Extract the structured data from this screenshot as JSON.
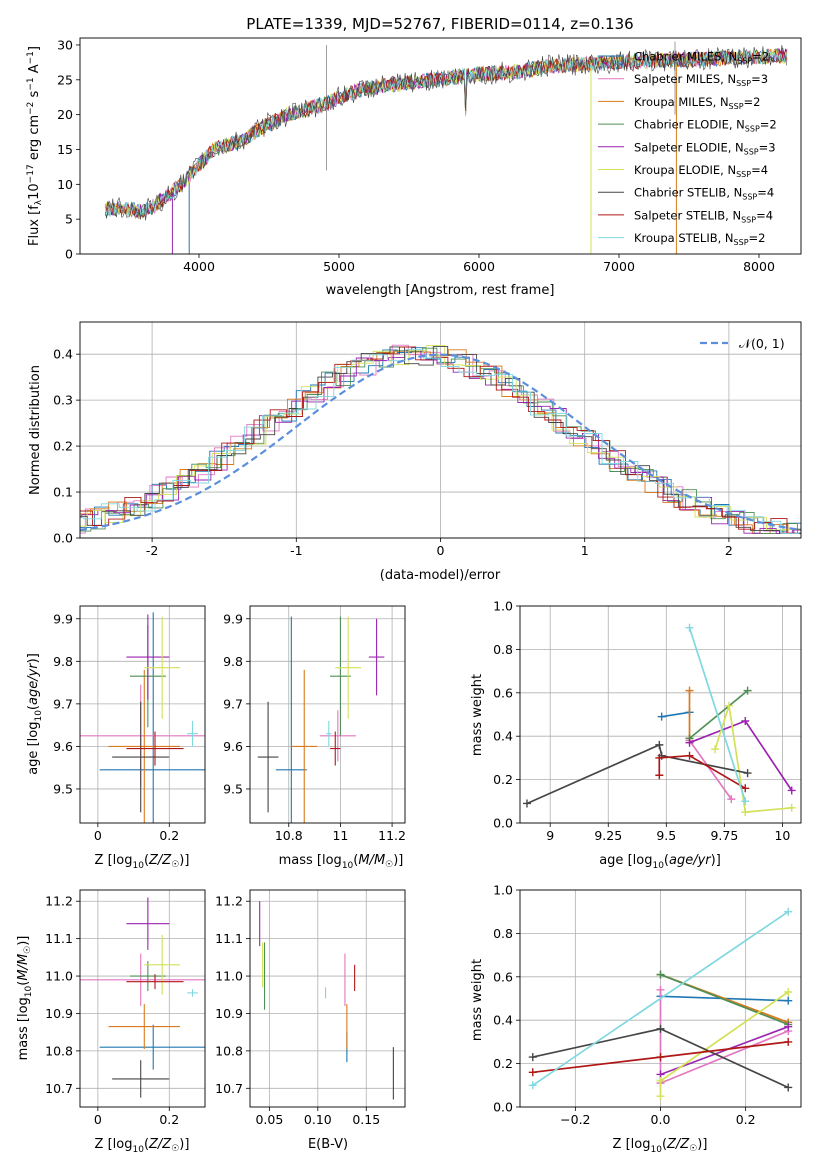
{
  "chart_data": [
    {
      "id": "spectrum",
      "type": "line",
      "title": "PLATE=1339, MJD=52767, FIBERID=0114, z=0.136",
      "xlabel": "wavelength [Angstrom, rest frame]",
      "ylabel_parts": [
        "Flux [f",
        "λ",
        "10",
        "−17",
        " erg cm",
        "−2",
        " s",
        "−1",
        " A",
        "−1",
        "]"
      ],
      "xlim": [
        3150,
        8300
      ],
      "ylim": [
        0,
        31
      ],
      "xticks": [
        4000,
        5000,
        6000,
        7000,
        8000
      ],
      "yticks": [
        0,
        5,
        10,
        15,
        20,
        25,
        30
      ],
      "legend_position": "upper right",
      "legend": [
        {
          "label": "Chabrier MILES, N",
          "sub": "SSP",
          "tail": "=2",
          "color": "#1f77b4"
        },
        {
          "label": "Salpeter MILES, N",
          "sub": "SSP",
          "tail": "=3",
          "color": "#e377c2"
        },
        {
          "label": "Kroupa MILES, N",
          "sub": "SSP",
          "tail": "=2",
          "color": "#d97a1c"
        },
        {
          "label": "Chabrier ELODIE, N",
          "sub": "SSP",
          "tail": "=2",
          "color": "#4f8f55"
        },
        {
          "label": "Salpeter ELODIE, N",
          "sub": "SSP",
          "tail": "=3",
          "color": "#9b24b0"
        },
        {
          "label": "Kroupa ELODIE, N",
          "sub": "SSP",
          "tail": "=4",
          "color": "#d4e157"
        },
        {
          "label": "Chabrier STELIB, N",
          "sub": "SSP",
          "tail": "=4",
          "color": "#454545"
        },
        {
          "label": "Salpeter STELIB, N",
          "sub": "SSP",
          "tail": "=4",
          "color": "#b01818"
        },
        {
          "label": "Kroupa STELIB, N",
          "sub": "SSP",
          "tail": "=2",
          "color": "#80d8e0"
        }
      ],
      "continuum": [
        [
          3320,
          6.5
        ],
        [
          3500,
          6.5
        ],
        [
          3600,
          6.0
        ],
        [
          3700,
          7.2
        ],
        [
          3800,
          8.8
        ],
        [
          3900,
          10.5
        ],
        [
          4000,
          12.8
        ],
        [
          4100,
          15.0
        ],
        [
          4200,
          15.6
        ],
        [
          4300,
          16.3
        ],
        [
          4400,
          17.5
        ],
        [
          4500,
          18.8
        ],
        [
          4700,
          20.4
        ],
        [
          4900,
          21.5
        ],
        [
          5000,
          22.5
        ],
        [
          5200,
          23.8
        ],
        [
          5500,
          24.6
        ],
        [
          5800,
          25.3
        ],
        [
          6000,
          25.8
        ],
        [
          6300,
          26.2
        ],
        [
          6500,
          27.0
        ],
        [
          6700,
          27.2
        ],
        [
          7000,
          27.6
        ],
        [
          7500,
          27.9
        ],
        [
          8000,
          28.3
        ],
        [
          8200,
          28.5
        ]
      ],
      "drops": [
        {
          "color": "#1f77b4",
          "x": 3930
        },
        {
          "color": "#d4e157",
          "x": 6800
        },
        {
          "color": "#d97a1c",
          "x": 7410
        },
        {
          "color": "#9b24b0",
          "x": 3810
        }
      ]
    },
    {
      "id": "residuals",
      "type": "histogram",
      "xlabel": "(data-model)/error",
      "ylabel": "Normed distribution",
      "xlim": [
        -2.5,
        2.5
      ],
      "ylim": [
        0,
        0.47
      ],
      "xticks": [
        -2,
        -1,
        0,
        1,
        2
      ],
      "yticks": [
        0.0,
        0.1,
        0.2,
        0.3,
        0.4
      ],
      "grid": true,
      "legend": [
        {
          "label": "𝒩(0, 1)",
          "color": "#5b8fde",
          "style": "dashed"
        }
      ],
      "legend_position": "upper right",
      "reference_curve": "normal(0,1)"
    },
    {
      "id": "age_vs_Z",
      "type": "scatter",
      "xlabel": "Z [log10(Z/Z☉)]",
      "ylabel": "age [log10(age/yr)]",
      "xlim": [
        -0.05,
        0.3
      ],
      "ylim": [
        9.42,
        9.93
      ],
      "xticks": [
        0.0,
        0.2
      ],
      "yticks": [
        9.5,
        9.6,
        9.7,
        9.8,
        9.9
      ],
      "grid": true,
      "points": [
        {
          "color": "#1f77b4",
          "x": 0.155,
          "y": 9.545,
          "xerr": 0.15,
          "yerr": 0.37
        },
        {
          "color": "#e377c2",
          "x": 0.12,
          "y": 9.625,
          "xerr": 0.18,
          "yerr": 0.12
        },
        {
          "color": "#d97a1c",
          "x": 0.13,
          "y": 9.6,
          "xerr": 0.1,
          "yerr": 0.18
        },
        {
          "color": "#4f8f55",
          "x": 0.14,
          "y": 9.765,
          "xerr": 0.05,
          "yerr": 0.12
        },
        {
          "color": "#9b24b0",
          "x": 0.14,
          "y": 9.81,
          "xerr": 0.06,
          "yerr": 0.1
        },
        {
          "color": "#d4e157",
          "x": 0.18,
          "y": 9.785,
          "xerr": 0.05,
          "yerr": 0.12
        },
        {
          "color": "#454545",
          "x": 0.12,
          "y": 9.575,
          "xerr": 0.08,
          "yerr": 0.13
        },
        {
          "color": "#b01818",
          "x": 0.16,
          "y": 9.595,
          "xerr": 0.08,
          "yerr": 0.04
        },
        {
          "color": "#80d8e0",
          "x": 0.265,
          "y": 9.63,
          "xerr": 0.015,
          "yerr": 0.03
        }
      ]
    },
    {
      "id": "age_vs_mass",
      "type": "scatter",
      "xlabel": "mass [log10(M/M☉)]",
      "ylabel": "",
      "xlim": [
        10.65,
        11.25
      ],
      "ylim": [
        9.42,
        9.93
      ],
      "xticks": [
        10.8,
        11.0,
        11.2
      ],
      "yticks": [
        9.5,
        9.6,
        9.7,
        9.8,
        9.9
      ],
      "grid": true,
      "points": [
        {
          "color": "#1f77b4",
          "x": 10.81,
          "y": 9.545,
          "xerr": 0.06,
          "yerr": 0.36
        },
        {
          "color": "#e377c2",
          "x": 10.99,
          "y": 9.625,
          "xerr": 0.07,
          "yerr": 0.06
        },
        {
          "color": "#d97a1c",
          "x": 10.86,
          "y": 9.6,
          "xerr": 0.05,
          "yerr": 0.18
        },
        {
          "color": "#4f8f55",
          "x": 11.0,
          "y": 9.765,
          "xerr": 0.04,
          "yerr": 0.14
        },
        {
          "color": "#9b24b0",
          "x": 11.14,
          "y": 9.81,
          "xerr": 0.03,
          "yerr": 0.09
        },
        {
          "color": "#d4e157",
          "x": 11.03,
          "y": 9.785,
          "xerr": 0.05,
          "yerr": 0.12
        },
        {
          "color": "#454545",
          "x": 10.72,
          "y": 9.575,
          "xerr": 0.04,
          "yerr": 0.13
        },
        {
          "color": "#b01818",
          "x": 10.98,
          "y": 9.595,
          "xerr": 0.02,
          "yerr": 0.04
        },
        {
          "color": "#80d8e0",
          "x": 10.955,
          "y": 9.63,
          "xerr": 0.01,
          "yerr": 0.03
        }
      ]
    },
    {
      "id": "weight_vs_age",
      "type": "line",
      "xlabel": "age [log10(age/yr)]",
      "ylabel": "mass weight",
      "xlim": [
        8.87,
        10.08
      ],
      "ylim": [
        0,
        1
      ],
      "xticks": [
        9.0,
        9.25,
        9.5,
        9.75,
        10.0
      ],
      "yticks": [
        0.0,
        0.2,
        0.4,
        0.6,
        0.8,
        1.0
      ],
      "grid": true,
      "series": [
        {
          "color": "#1f77b4",
          "points": [
            [
              9.48,
              0.49
            ],
            [
              9.6,
              0.51
            ]
          ]
        },
        {
          "color": "#e377c2",
          "points": [
            [
              9.6,
              0.38
            ],
            [
              9.78,
              0.11
            ]
          ]
        },
        {
          "color": "#d97a1c",
          "points": [
            [
              9.6,
              0.61
            ],
            [
              9.6,
              0.39
            ]
          ]
        },
        {
          "color": "#4f8f55",
          "points": [
            [
              9.6,
              0.39
            ],
            [
              9.85,
              0.61
            ]
          ]
        },
        {
          "color": "#9b24b0",
          "points": [
            [
              9.6,
              0.37
            ],
            [
              9.84,
              0.47
            ],
            [
              10.04,
              0.15
            ]
          ]
        },
        {
          "color": "#d4e157",
          "points": [
            [
              9.71,
              0.34
            ],
            [
              9.77,
              0.54
            ],
            [
              9.84,
              0.05
            ],
            [
              10.04,
              0.07
            ]
          ]
        },
        {
          "color": "#454545",
          "points": [
            [
              8.9,
              0.09
            ],
            [
              9.47,
              0.36
            ],
            [
              9.48,
              0.31
            ],
            [
              9.85,
              0.23
            ]
          ]
        },
        {
          "color": "#b01818",
          "points": [
            [
              9.47,
              0.22
            ],
            [
              9.47,
              0.3
            ],
            [
              9.6,
              0.31
            ],
            [
              9.84,
              0.16
            ]
          ]
        },
        {
          "color": "#80d8e0",
          "points": [
            [
              9.6,
              0.9
            ],
            [
              9.84,
              0.1
            ]
          ]
        }
      ]
    },
    {
      "id": "mass_vs_Z",
      "type": "scatter",
      "xlabel": "Z [log10(Z/Z☉)]",
      "ylabel": "mass [log10(M/M☉)]",
      "xlim": [
        -0.05,
        0.3
      ],
      "ylim": [
        10.65,
        11.23
      ],
      "xticks": [
        0.0,
        0.2
      ],
      "yticks": [
        10.7,
        10.8,
        10.9,
        11.0,
        11.1,
        11.2
      ],
      "grid": true,
      "points": [
        {
          "color": "#1f77b4",
          "x": 0.155,
          "y": 10.81,
          "xerr": 0.15,
          "yerr": 0.06
        },
        {
          "color": "#e377c2",
          "x": 0.12,
          "y": 10.99,
          "xerr": 0.18,
          "yerr": 0.07
        },
        {
          "color": "#d97a1c",
          "x": 0.13,
          "y": 10.865,
          "xerr": 0.1,
          "yerr": 0.06
        },
        {
          "color": "#4f8f55",
          "x": 0.14,
          "y": 11.0,
          "xerr": 0.05,
          "yerr": 0.04
        },
        {
          "color": "#9b24b0",
          "x": 0.14,
          "y": 11.14,
          "xerr": 0.06,
          "yerr": 0.07
        },
        {
          "color": "#d4e157",
          "x": 0.18,
          "y": 11.03,
          "xerr": 0.05,
          "yerr": 0.08
        },
        {
          "color": "#454545",
          "x": 0.12,
          "y": 10.725,
          "xerr": 0.08,
          "yerr": 0.05
        },
        {
          "color": "#b01818",
          "x": 0.16,
          "y": 10.985,
          "xerr": 0.08,
          "yerr": 0.02
        },
        {
          "color": "#80d8e0",
          "x": 0.265,
          "y": 10.955,
          "xerr": 0.015,
          "yerr": 0.01
        }
      ]
    },
    {
      "id": "mass_vs_ebv",
      "type": "scatter",
      "xlabel": "E(B-V)",
      "ylabel": "",
      "xlim": [
        0.03,
        0.19
      ],
      "ylim": [
        10.65,
        11.23
      ],
      "xticks": [
        0.05,
        0.1,
        0.15
      ],
      "xtick_labels": [
        "0.05",
        "0.10",
        "0.15"
      ],
      "yticks": [
        10.7,
        10.8,
        10.9,
        11.0,
        11.1,
        11.2
      ],
      "grid": true,
      "points": [
        {
          "color": "#1f77b4",
          "x": 0.13,
          "y": 10.81,
          "yerr": 0.04
        },
        {
          "color": "#e377c2",
          "x": 0.128,
          "y": 10.99,
          "yerr": 0.07
        },
        {
          "color": "#d97a1c",
          "x": 0.13,
          "y": 10.865,
          "yerr": 0.06
        },
        {
          "color": "#4f8f55",
          "x": 0.045,
          "y": 11.0,
          "yerr": 0.09
        },
        {
          "color": "#9b24b0",
          "x": 0.04,
          "y": 11.14,
          "yerr": 0.06
        },
        {
          "color": "#d4e157",
          "x": 0.043,
          "y": 11.03,
          "yerr": 0.06
        },
        {
          "color": "#454545",
          "x": 0.178,
          "y": 10.74,
          "yerr": 0.07
        },
        {
          "color": "#b01818",
          "x": 0.138,
          "y": 10.995,
          "yerr": 0.035
        },
        {
          "color": "#80d8e0",
          "x": 0.108,
          "y": 10.955,
          "yerr": 0.015
        }
      ]
    },
    {
      "id": "weight_vs_Z",
      "type": "line",
      "xlabel": "Z [log10(Z/Z☉)]",
      "ylabel": "mass weight",
      "xlim": [
        -0.33,
        0.33
      ],
      "ylim": [
        0,
        1
      ],
      "xticks": [
        -0.2,
        0.0,
        0.2
      ],
      "xtick_labels": [
        "−0.2",
        "0.0",
        "0.2"
      ],
      "yticks": [
        0.0,
        0.2,
        0.4,
        0.6,
        0.8,
        1.0
      ],
      "grid": true,
      "series": [
        {
          "color": "#1f77b4",
          "points": [
            [
              0,
              0.51
            ],
            [
              0.3,
              0.49
            ]
          ]
        },
        {
          "color": "#e377c2",
          "points": [
            [
              0,
              0.54
            ],
            [
              0,
              0.11
            ],
            [
              0.3,
              0.35
            ]
          ]
        },
        {
          "color": "#d97a1c",
          "points": [
            [
              0,
              0.61
            ],
            [
              0.3,
              0.39
            ]
          ]
        },
        {
          "color": "#4f8f55",
          "points": [
            [
              0,
              0.61
            ],
            [
              0.3,
              0.38
            ]
          ]
        },
        {
          "color": "#9b24b0",
          "points": [
            [
              0,
              0.15
            ],
            [
              0.3,
              0.37
            ]
          ]
        },
        {
          "color": "#d4e157",
          "points": [
            [
              0,
              0.05
            ],
            [
              0,
              0.12
            ],
            [
              0.3,
              0.53
            ]
          ]
        },
        {
          "color": "#454545",
          "points": [
            [
              -0.3,
              0.23
            ],
            [
              0,
              0.36
            ],
            [
              0.3,
              0.09
            ]
          ]
        },
        {
          "color": "#b01818",
          "points": [
            [
              -0.3,
              0.16
            ],
            [
              0,
              0.23
            ],
            [
              0.3,
              0.3
            ]
          ]
        },
        {
          "color": "#80d8e0",
          "points": [
            [
              -0.3,
              0.1
            ],
            [
              0.3,
              0.9
            ]
          ]
        }
      ]
    }
  ]
}
